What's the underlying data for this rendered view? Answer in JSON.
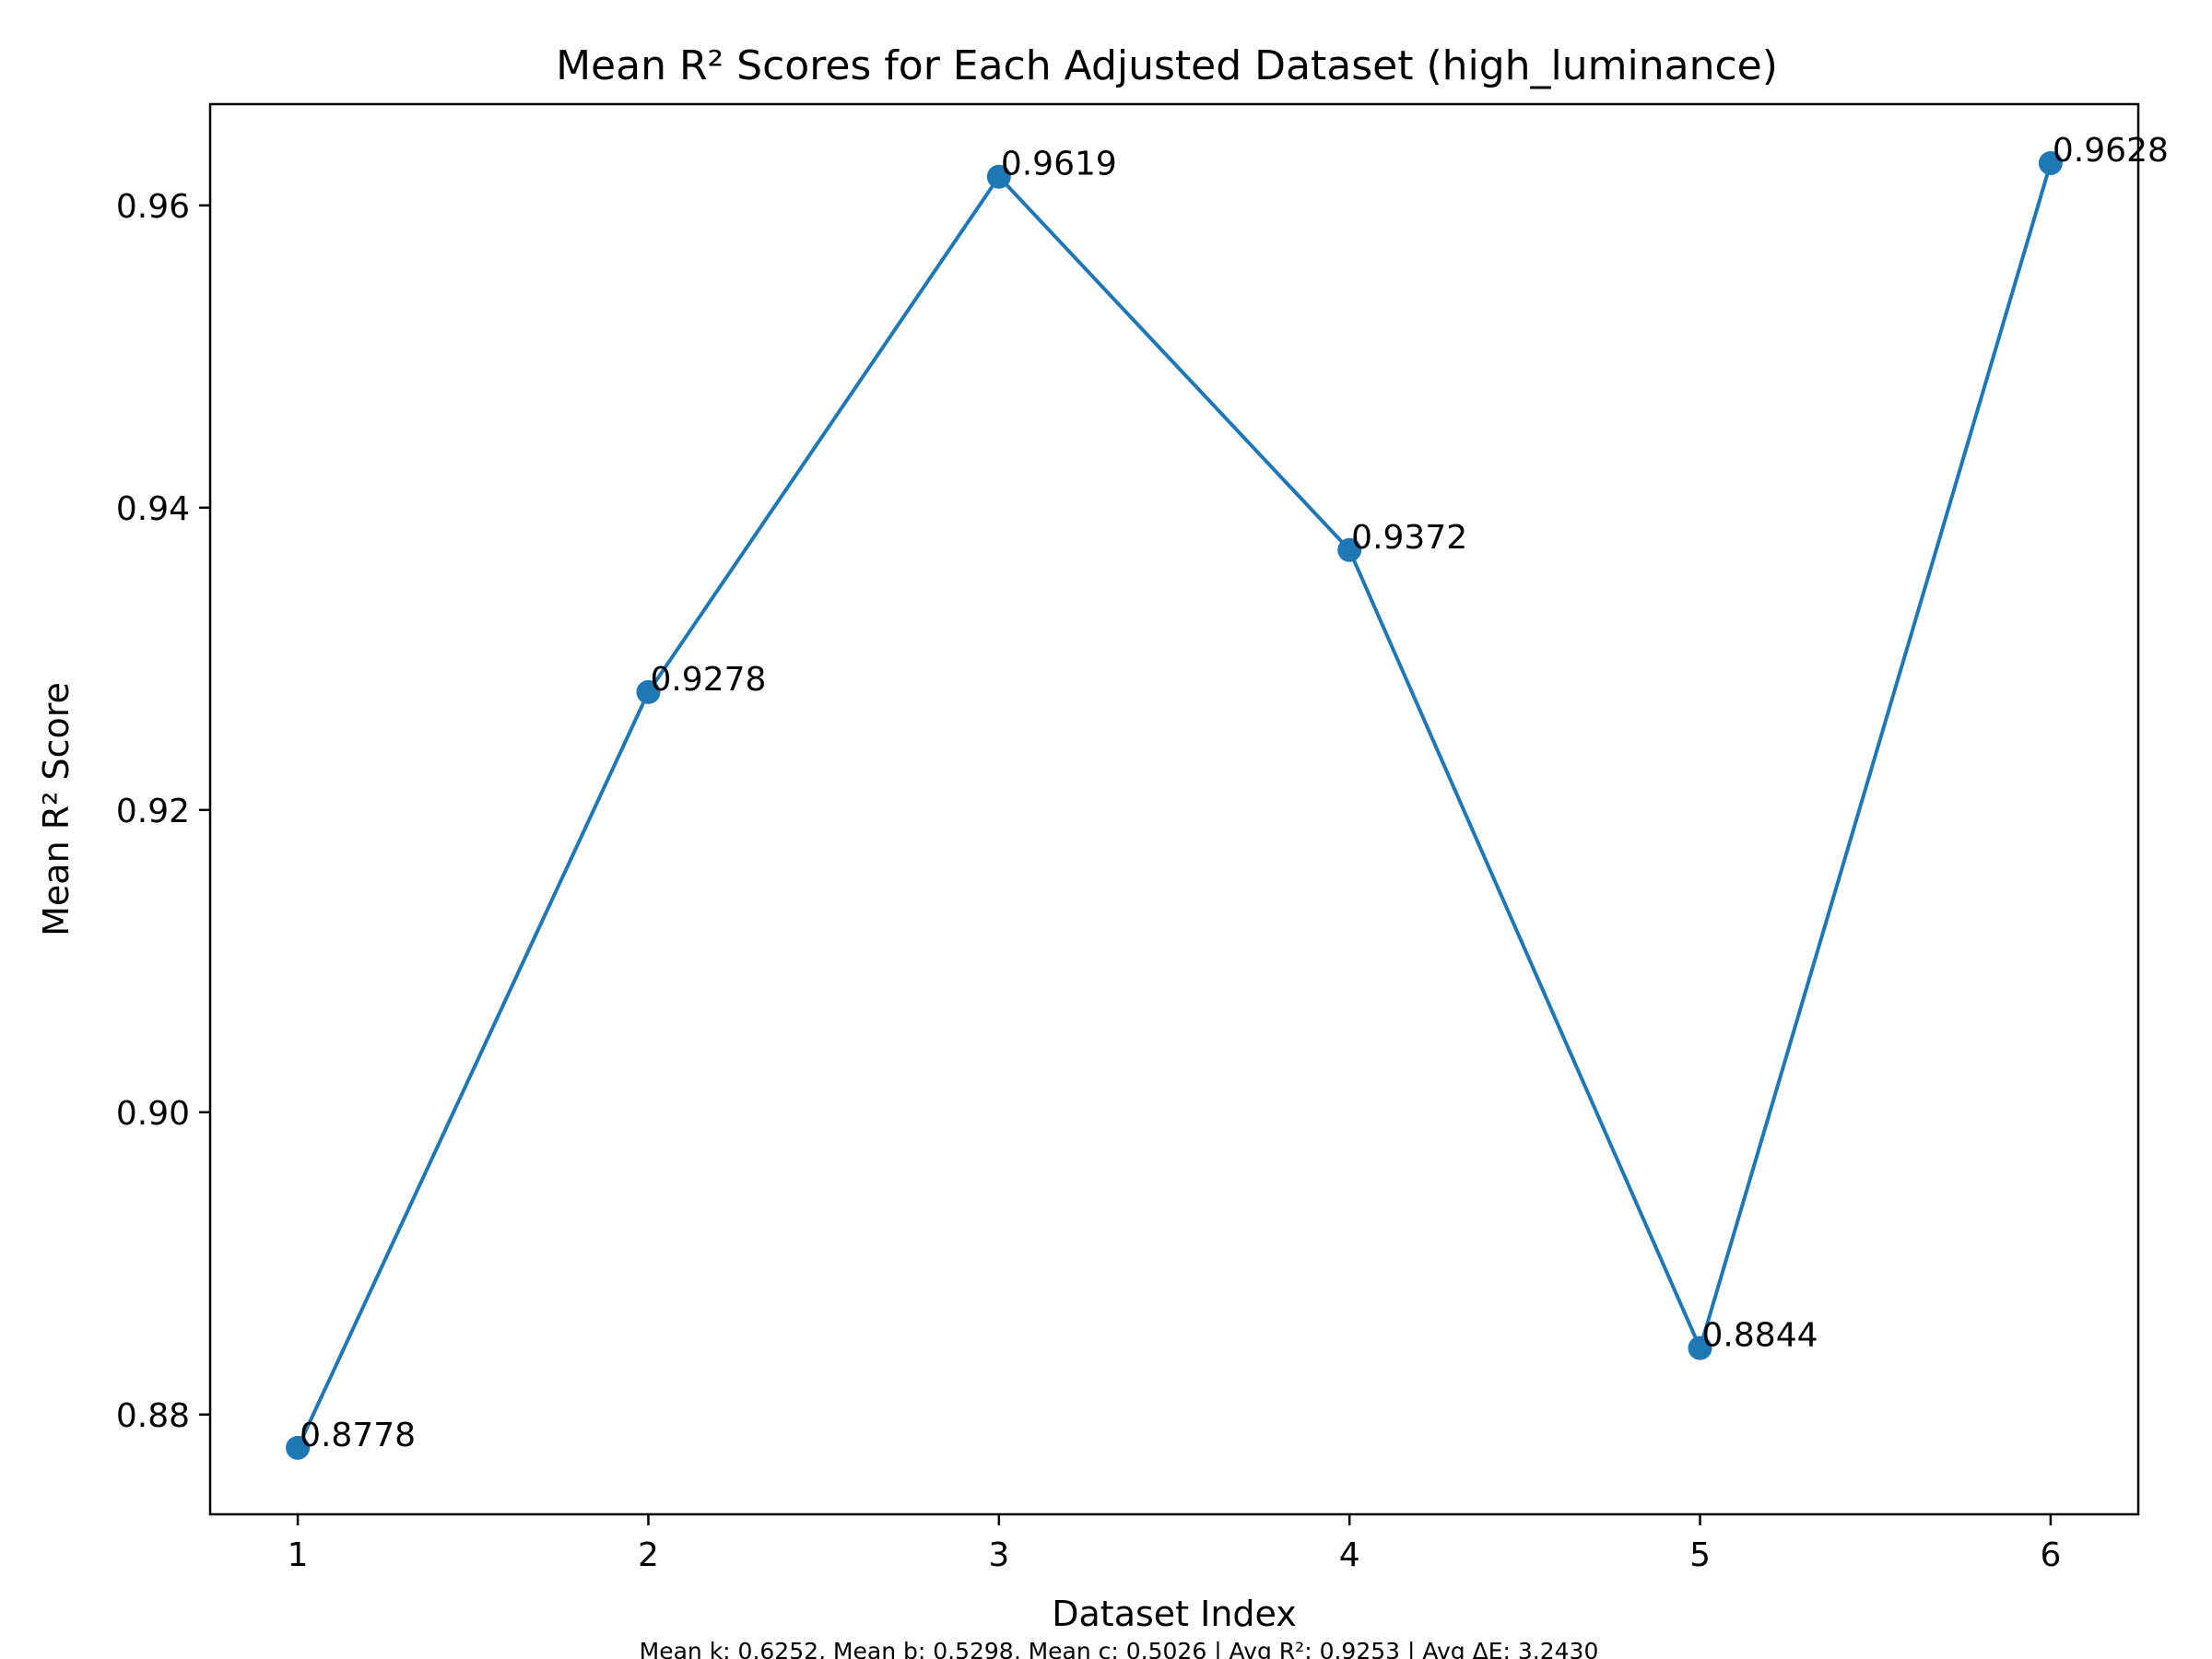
{
  "chart_data": {
    "type": "line",
    "title": "Mean R² Scores for Each Adjusted Dataset (high_luminance)",
    "xlabel": "Dataset Index",
    "ylabel": "Mean R² Score",
    "x": [
      1,
      2,
      3,
      4,
      5,
      6
    ],
    "x_ticks": [
      1,
      2,
      3,
      4,
      5,
      6
    ],
    "x_tick_labels": [
      "1",
      "2",
      "3",
      "4",
      "5",
      "6"
    ],
    "y_ticks": [
      0.88,
      0.9,
      0.92,
      0.94,
      0.96
    ],
    "y_tick_labels": [
      "0.88",
      "0.90",
      "0.92",
      "0.94",
      "0.96"
    ],
    "xlim": [
      0.75,
      6.25
    ],
    "ylim": [
      0.8734,
      0.9667
    ],
    "series": [
      {
        "values": [
          0.8778,
          0.9278,
          0.9619,
          0.9372,
          0.8844,
          0.9628
        ],
        "point_labels": [
          "0.8778",
          "0.9278",
          "0.9619",
          "0.9372",
          "0.8844",
          "0.9628"
        ],
        "color": "#1f77b4",
        "marker": "circle"
      }
    ],
    "grid": false,
    "legend": false,
    "footnote": "Mean k: 0.6252, Mean b: 0.5298, Mean c: 0.5026 | Avg R²: 0.9253 | Avg ΔE: 3.2430"
  }
}
